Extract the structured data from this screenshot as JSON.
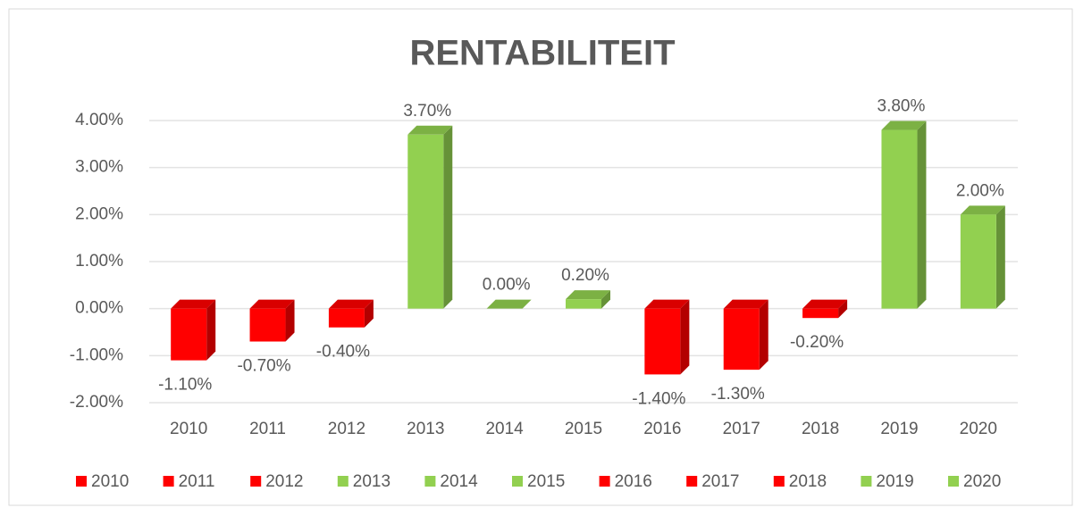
{
  "chart_data": {
    "type": "bar",
    "title": "RENTABILITEIT",
    "categories": [
      "2010",
      "2011",
      "2012",
      "2013",
      "2014",
      "2015",
      "2016",
      "2017",
      "2018",
      "2019",
      "2020"
    ],
    "values": [
      -1.1,
      -0.7,
      -0.4,
      3.7,
      0,
      0.2,
      -1.4,
      -1.3,
      -0.2,
      3.8,
      2.0
    ],
    "value_labels": [
      "-1.10%",
      "-0.70%",
      "-0.40%",
      "3.70%",
      "0.00%",
      "0.20%",
      "-1.40%",
      "-1.30%",
      "-0.20%",
      "3.80%",
      "2.00%"
    ],
    "colors": [
      "#ff0000",
      "#ff0000",
      "#ff0000",
      "#92d050",
      "#92d050",
      "#92d050",
      "#ff0000",
      "#ff0000",
      "#ff0000",
      "#92d050",
      "#92d050"
    ],
    "ylim": [
      -2,
      4
    ],
    "yticks": [
      {
        "value": -2,
        "label": "-2.00%"
      },
      {
        "value": -1,
        "label": "-1.00%"
      },
      {
        "value": 0,
        "label": "0.00%"
      },
      {
        "value": 1,
        "label": "1.00%"
      },
      {
        "value": 2,
        "label": "2.00%"
      },
      {
        "value": 3,
        "label": "3.00%"
      },
      {
        "value": 4,
        "label": "4.00%"
      }
    ],
    "grid": true,
    "legend": "bottom"
  }
}
